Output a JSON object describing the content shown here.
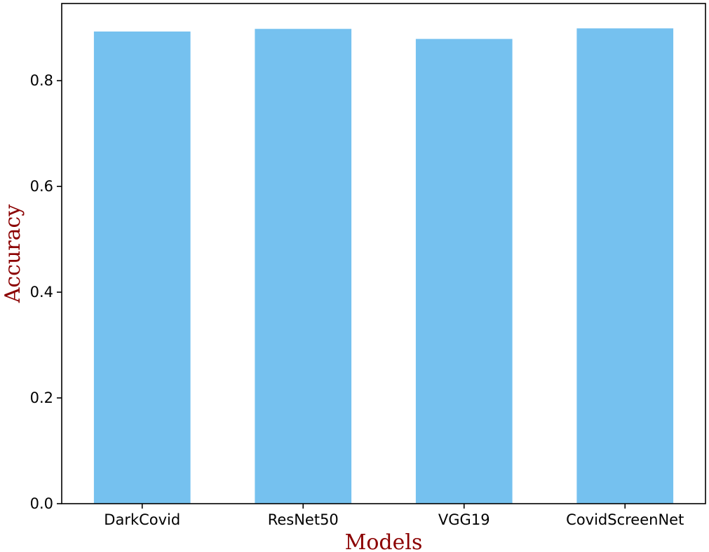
{
  "chart_data": {
    "type": "bar",
    "categories": [
      "DarkCovid",
      "ResNet50",
      "VGG19",
      "CovidScreenNet"
    ],
    "values": [
      0.893,
      0.898,
      0.879,
      0.899
    ],
    "xlabel": "Models",
    "ylabel": "Accuracy",
    "ylim": [
      0,
      0.946
    ],
    "yticks": [
      0.0,
      0.2,
      0.4,
      0.6,
      0.8
    ],
    "ytick_labels": [
      "0.0",
      "0.2",
      "0.4",
      "0.6",
      "0.8"
    ],
    "grid": false,
    "legend": "none",
    "bar_color": "#75c1ef",
    "label_color": "#8b0000"
  }
}
